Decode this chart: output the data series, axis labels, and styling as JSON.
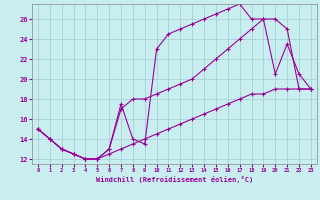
{
  "xlabel": "Windchill (Refroidissement éolien,°C)",
  "background_color": "#c8eef0",
  "grid_color": "#a0ccd0",
  "line_color": "#990099",
  "xlim": [
    -0.5,
    23.5
  ],
  "ylim": [
    11.5,
    27.5
  ],
  "xticks": [
    0,
    1,
    2,
    3,
    4,
    5,
    6,
    7,
    8,
    9,
    10,
    11,
    12,
    13,
    14,
    15,
    16,
    17,
    18,
    19,
    20,
    21,
    22,
    23
  ],
  "yticks": [
    12,
    14,
    16,
    18,
    20,
    22,
    24,
    26
  ],
  "line1_x": [
    0,
    1,
    2,
    3,
    4,
    5,
    6,
    7,
    8,
    9,
    10,
    11,
    12,
    13,
    14,
    15,
    16,
    17,
    18,
    19,
    20,
    21,
    22,
    23
  ],
  "line1_y": [
    15,
    14,
    13,
    12.5,
    12,
    12,
    13,
    17.5,
    14,
    13.5,
    23,
    24.5,
    25,
    25.5,
    26,
    26.5,
    27,
    27.5,
    26,
    26,
    20.5,
    23.5,
    20.5,
    19
  ],
  "line2_x": [
    0,
    1,
    2,
    3,
    4,
    5,
    6,
    7,
    8,
    9,
    10,
    11,
    12,
    13,
    14,
    15,
    16,
    17,
    18,
    19,
    20,
    21,
    22,
    23
  ],
  "line2_y": [
    15,
    14,
    13,
    12.5,
    12,
    12,
    13,
    17,
    18,
    18,
    18.5,
    19,
    19.5,
    20,
    21,
    22,
    23,
    24,
    25,
    26,
    26,
    25,
    19,
    19
  ],
  "line3_x": [
    0,
    1,
    2,
    3,
    4,
    5,
    6,
    7,
    8,
    9,
    10,
    11,
    12,
    13,
    14,
    15,
    16,
    17,
    18,
    19,
    20,
    21,
    22,
    23
  ],
  "line3_y": [
    15,
    14,
    13,
    12.5,
    12,
    12,
    12.5,
    13,
    13.5,
    14,
    14.5,
    15,
    15.5,
    16,
    16.5,
    17,
    17.5,
    18,
    18.5,
    18.5,
    19,
    19,
    19,
    19
  ]
}
